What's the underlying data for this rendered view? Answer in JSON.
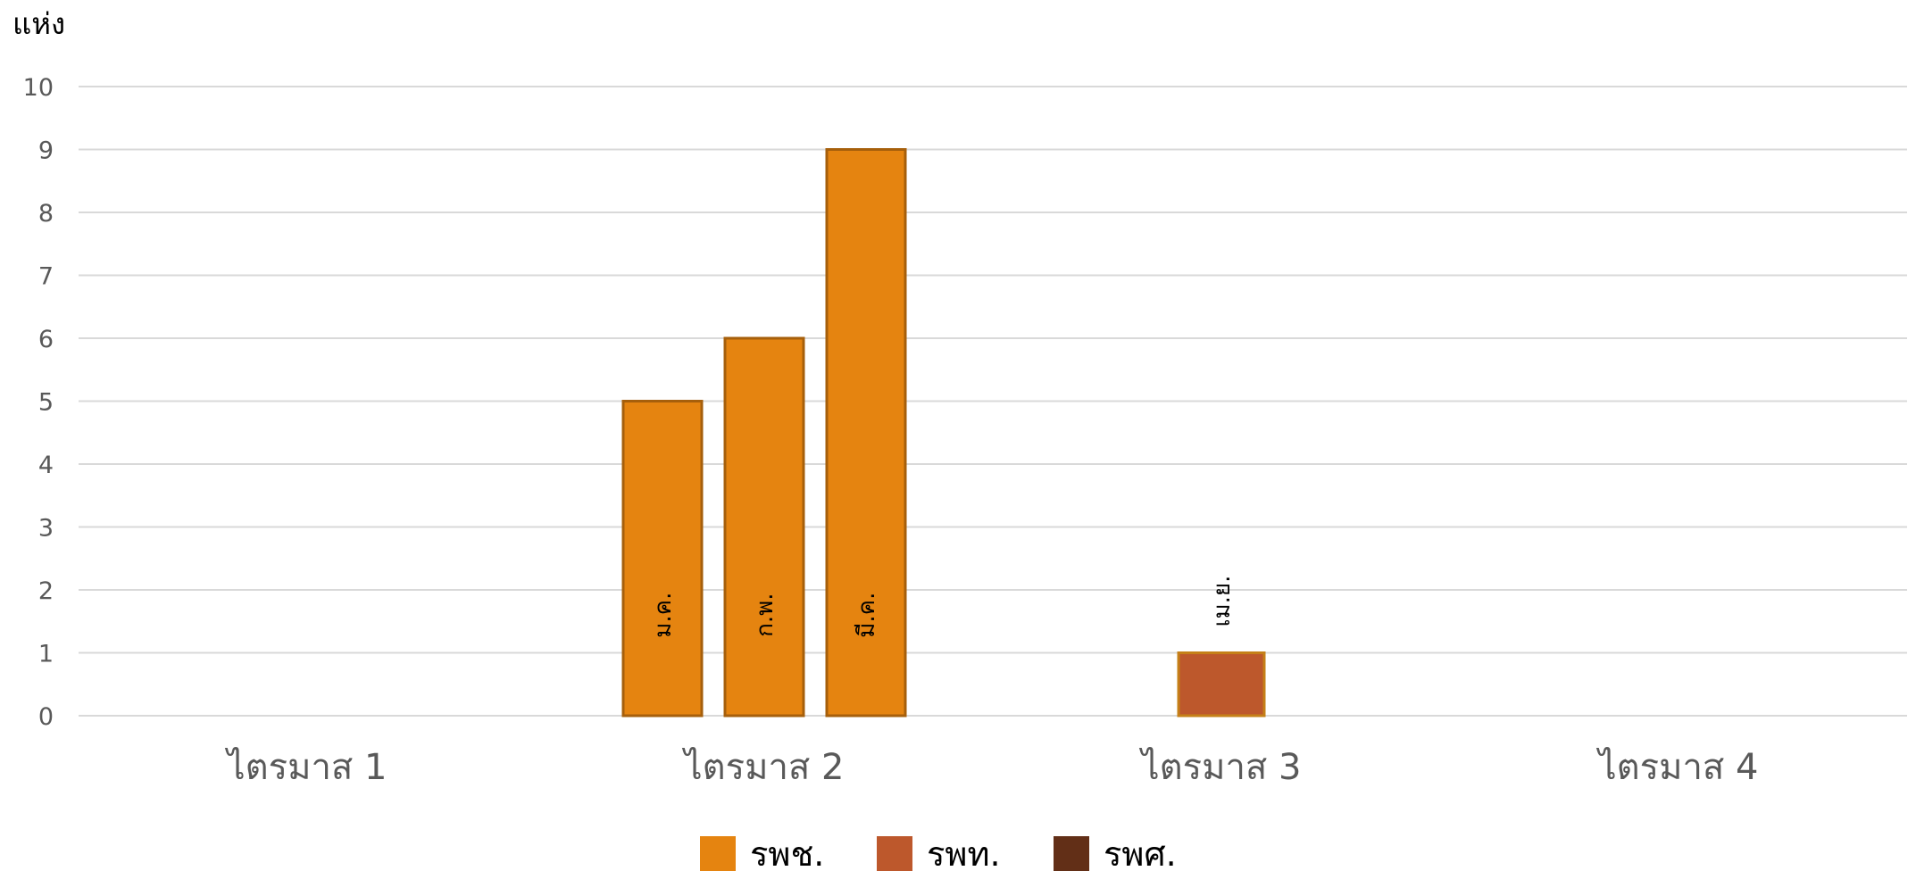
{
  "chart_data": {
    "type": "bar",
    "title": "",
    "ylabel": "แห่ง",
    "xlabel": "",
    "ylim": [
      0,
      10
    ],
    "yticks": [
      0,
      1,
      2,
      3,
      4,
      5,
      6,
      7,
      8,
      9,
      10
    ],
    "grid": true,
    "legend_position": "bottom",
    "categories": [
      "ไตรมาส 1",
      "ไตรมาส 2",
      "ไตรมาส 3",
      "ไตรมาส 4"
    ],
    "series": [
      {
        "name": "รพช.",
        "color": "#E58410",
        "border": "#A65F0B"
      },
      {
        "name": "รพท.",
        "color": "#BD582C",
        "border": "#C58018"
      },
      {
        "name": "รพศ.",
        "color": "#622F17",
        "border": "#622F17"
      }
    ],
    "bars": [
      {
        "category": "ไตรมาส 2",
        "series": "รพช.",
        "label": "ม.ค.",
        "value": 5
      },
      {
        "category": "ไตรมาส 2",
        "series": "รพช.",
        "label": "ก.พ.",
        "value": 6
      },
      {
        "category": "ไตรมาส 2",
        "series": "รพช.",
        "label": "มี.ค.",
        "value": 9
      },
      {
        "category": "ไตรมาส 3",
        "series": "รพท.",
        "label": "เม.ย.",
        "value": 1
      }
    ]
  }
}
